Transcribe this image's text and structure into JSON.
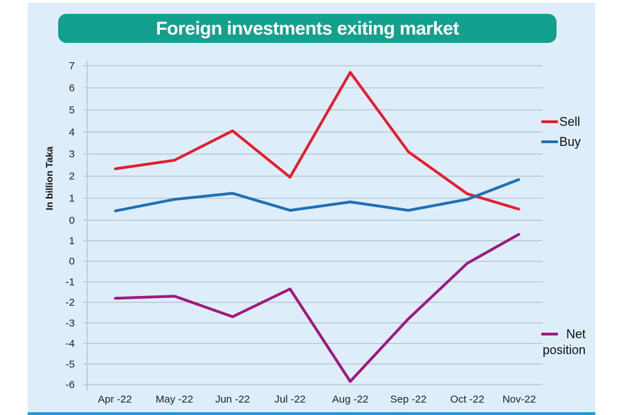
{
  "chart_data": {
    "type": "line",
    "title": "Foreign investments exiting market",
    "ylabel": "In billion Taka",
    "xlabel": "",
    "categories": [
      "Apr -22",
      "May -22",
      "Jun -22",
      "Jul -22",
      "Aug -22",
      "Sep -22",
      "Oct -22",
      "Nov-22"
    ],
    "panels": [
      {
        "name": "top",
        "ylim": [
          0,
          7
        ],
        "yticks": [
          "0",
          "1",
          "2",
          "3",
          "4",
          "5",
          "6",
          "7"
        ],
        "series": [
          {
            "name": "Sell",
            "color": "#e0202e",
            "values": [
              2.33,
              2.72,
              4.05,
              1.95,
              6.7,
              3.1,
              1.2,
              0.5
            ]
          },
          {
            "name": "Buy",
            "color": "#1f6fb5",
            "values": [
              0.42,
              0.95,
              1.22,
              0.45,
              0.83,
              0.45,
              0.95,
              1.85
            ]
          }
        ]
      },
      {
        "name": "bottom",
        "ylim": [
          -6,
          1
        ],
        "yticks": [
          "-6",
          "-5",
          "-4",
          "-3",
          "-2",
          "-1",
          "0",
          "1"
        ],
        "series": [
          {
            "name": "Net position",
            "legend_lines": [
              "Net",
              "position"
            ],
            "color": "#9c1a7e",
            "values": [
              -1.8,
              -1.7,
              -2.7,
              -1.35,
              -5.85,
              -2.8,
              -0.1,
              1.32
            ]
          }
        ]
      }
    ],
    "grid": true,
    "legend_placement": "right"
  }
}
